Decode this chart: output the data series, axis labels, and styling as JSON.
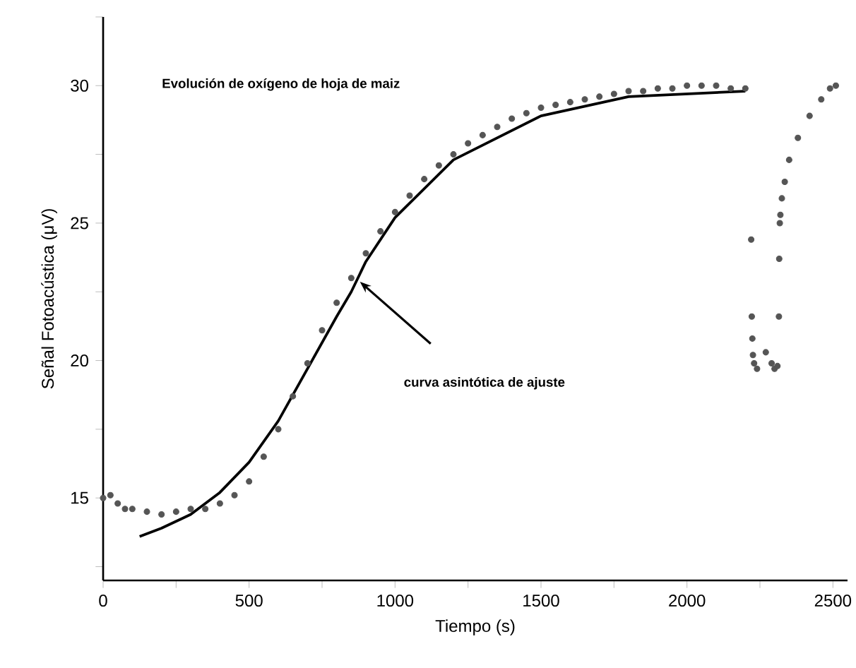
{
  "chart_data": {
    "type": "scatter",
    "xlabel": "Tiempo (s)",
    "ylabel": "Señal Fotoacústica (μV)",
    "xlim": [
      0,
      2550
    ],
    "ylim": [
      12,
      32.5
    ],
    "xticks": [
      0,
      {
        "value": 250,
        "label": null
      },
      500,
      {
        "value": 750,
        "label": null
      },
      1000,
      {
        "value": 1250,
        "label": null
      },
      1500,
      {
        "value": 1750,
        "label": null
      },
      2000,
      {
        "value": 2250,
        "label": null
      },
      2500
    ],
    "yticks": [
      {
        "value": 12.5,
        "label": null
      },
      15,
      {
        "value": 17.5,
        "label": null
      },
      20,
      {
        "value": 22.5,
        "label": null
      },
      25,
      {
        "value": 27.5,
        "label": null
      },
      30,
      {
        "value": 32.5,
        "label": null
      }
    ],
    "grid": false,
    "series": [
      {
        "color": "#555555",
        "marker": "circle",
        "x": [
          0,
          25,
          50,
          75,
          100,
          150,
          200,
          250,
          300,
          350,
          400,
          450,
          500,
          550,
          600,
          650,
          700,
          750,
          800,
          850,
          900,
          950,
          1000,
          1050,
          1100,
          1150,
          1200,
          1250,
          1300,
          1350,
          1400,
          1450,
          1500,
          1550,
          1600,
          1650,
          1700,
          1750,
          1800,
          1850,
          1900,
          1950,
          2000,
          2050,
          2100,
          2150,
          2200,
          2220,
          2222,
          2224,
          2226,
          2230,
          2240,
          2270,
          2290,
          2300,
          2310,
          2315,
          2316,
          2318,
          2320,
          2325,
          2335,
          2350,
          2380,
          2420,
          2460,
          2490,
          2510
        ],
        "values": [
          15.0,
          15.1,
          14.8,
          14.6,
          14.6,
          14.5,
          14.4,
          14.5,
          14.6,
          14.6,
          14.8,
          15.1,
          15.6,
          16.5,
          17.5,
          18.7,
          19.9,
          21.1,
          22.1,
          23.0,
          23.9,
          24.7,
          25.4,
          26.0,
          26.6,
          27.1,
          27.5,
          27.9,
          28.2,
          28.5,
          28.8,
          29.0,
          29.2,
          29.3,
          29.4,
          29.5,
          29.6,
          29.7,
          29.8,
          29.8,
          29.9,
          29.9,
          30.0,
          30.0,
          30.0,
          29.9,
          29.9,
          24.4,
          21.6,
          20.8,
          20.2,
          19.9,
          19.7,
          20.3,
          19.9,
          19.7,
          19.8,
          21.6,
          23.7,
          25.0,
          25.3,
          25.9,
          26.5,
          27.3,
          28.1,
          28.9,
          29.5,
          29.9,
          30.0
        ]
      },
      {
        "type": "line",
        "color": "#000000",
        "marker": "none",
        "line_style": "solid",
        "x": [
          125,
          200,
          300,
          400,
          500,
          600,
          700,
          800,
          850,
          900,
          1000,
          1200,
          1500,
          1800,
          2200
        ],
        "values": [
          13.6,
          13.9,
          14.4,
          15.2,
          16.3,
          17.8,
          19.7,
          21.6,
          22.5,
          23.6,
          25.2,
          27.3,
          28.9,
          29.6,
          29.8
        ]
      }
    ],
    "annotations": [
      "Evolución de oxígeno de hoja de maiz",
      "curva asintótica de ajuste"
    ]
  }
}
